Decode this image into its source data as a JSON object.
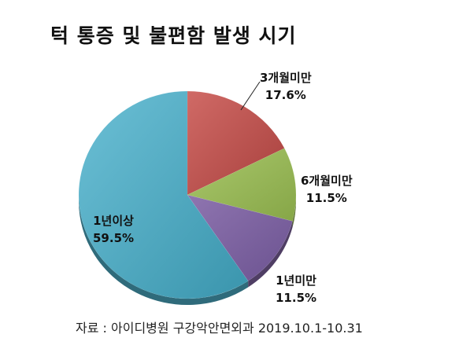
{
  "chart_data": {
    "type": "pie",
    "title": "턱 통증 및 불편함 발생 시기",
    "slices": [
      {
        "label": "3개월미만",
        "value": 17.6,
        "value_label": "17.6%",
        "color": "#c0504d"
      },
      {
        "label": "6개월미만",
        "value": 11.5,
        "value_label": "11.5%",
        "color": "#9bbb59"
      },
      {
        "label": "1년미만",
        "value": 11.5,
        "value_label": "11.5%",
        "color": "#8064a2"
      },
      {
        "label": "1년이상",
        "value": 59.5,
        "value_label": "59.5%",
        "color": "#4bacc6"
      }
    ],
    "start_angle": "12 o'clock",
    "direction": "clockwise",
    "style": "3d-tilted"
  },
  "source": "자료 : 아이디병원 구강악안면외과 2019.10.1-10.31"
}
